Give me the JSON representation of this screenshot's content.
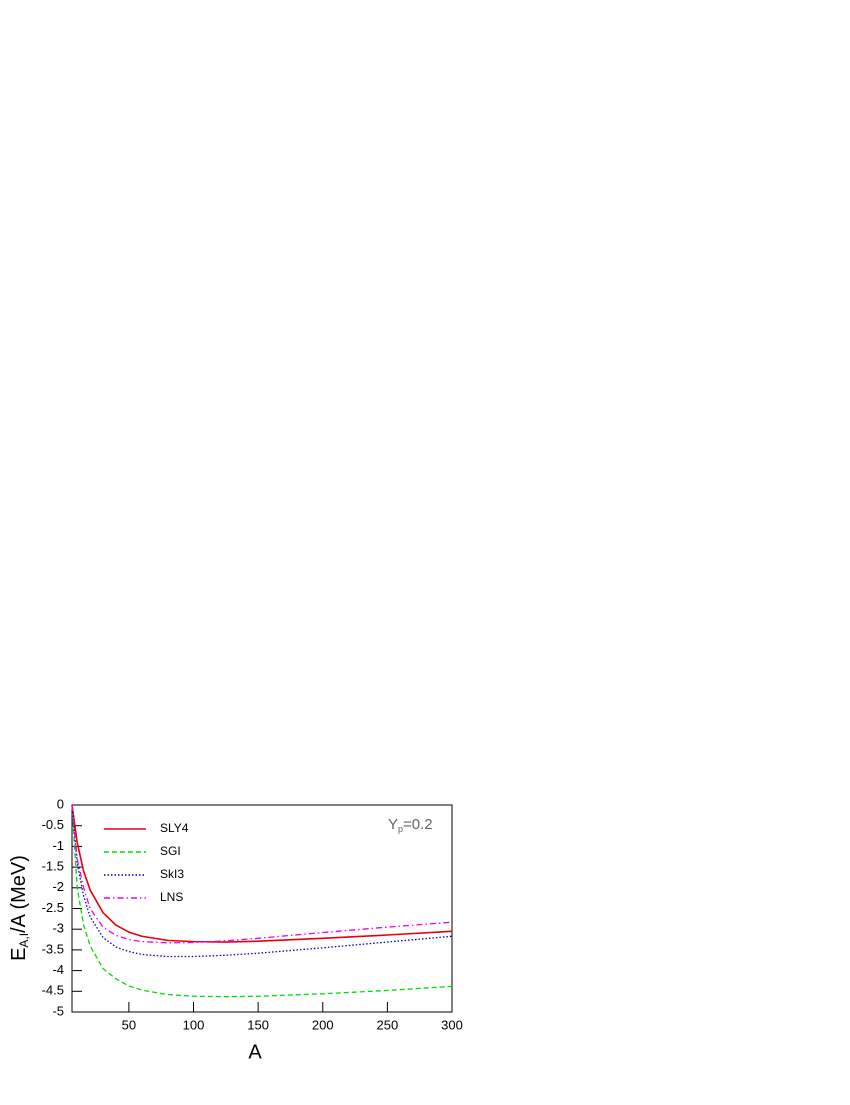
{
  "chart_data": {
    "type": "line",
    "x_label": "A",
    "y_label": {
      "main": "E",
      "sub": "A,I",
      "rest": "/A (MeV)"
    },
    "annotation": {
      "main": "Y",
      "sub": "p",
      "rest": "=0.2"
    },
    "x": [
      6,
      10,
      15,
      20,
      30,
      40,
      50,
      60,
      80,
      100,
      125,
      150,
      200,
      250,
      300
    ],
    "series": [
      {
        "name": "SLY4",
        "color": "#e8000b",
        "dash": "solid",
        "values": [
          0,
          -0.9,
          -1.6,
          -2.05,
          -2.6,
          -2.9,
          -3.07,
          -3.17,
          -3.27,
          -3.3,
          -3.31,
          -3.29,
          -3.22,
          -3.14,
          -3.05
        ]
      },
      {
        "name": "SGI",
        "color": "#00dd00",
        "dash": "dashed",
        "values": [
          0,
          -2.0,
          -2.9,
          -3.4,
          -3.95,
          -4.2,
          -4.37,
          -4.47,
          -4.58,
          -4.62,
          -4.63,
          -4.62,
          -4.56,
          -4.48,
          -4.38
        ]
      },
      {
        "name": "SkI3",
        "color": "#0000cc",
        "dash": "dotted",
        "values": [
          0,
          -1.4,
          -2.2,
          -2.7,
          -3.2,
          -3.43,
          -3.54,
          -3.61,
          -3.66,
          -3.66,
          -3.63,
          -3.58,
          -3.45,
          -3.31,
          -3.17
        ]
      },
      {
        "name": "LNS",
        "color": "#ee00ee",
        "dash": "dashdot",
        "values": [
          0,
          -1.3,
          -2.0,
          -2.5,
          -2.95,
          -3.15,
          -3.25,
          -3.3,
          -3.33,
          -3.32,
          -3.28,
          -3.22,
          -3.08,
          -2.95,
          -2.83
        ]
      }
    ],
    "xlim": [
      6,
      300
    ],
    "xticks": [
      50,
      100,
      150,
      200,
      250,
      300
    ],
    "ylim": [
      -5,
      0
    ],
    "yticks": [
      0,
      -0.5,
      -1,
      -1.5,
      -2,
      -2.5,
      -3,
      -3.5,
      -4,
      -4.5,
      -5
    ],
    "legend": "upper left"
  }
}
